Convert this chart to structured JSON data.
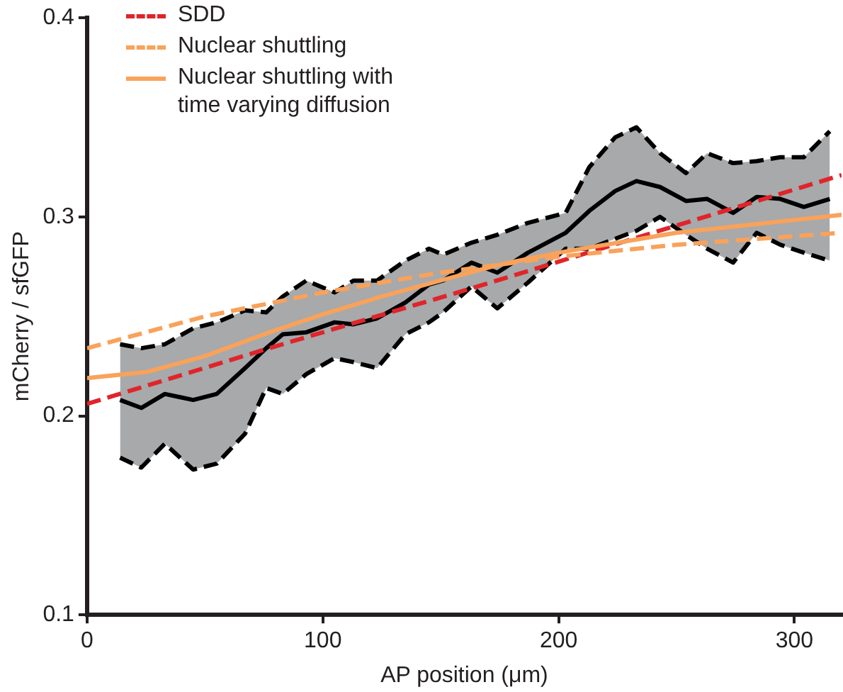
{
  "chart_data": {
    "type": "line",
    "xlabel": "AP position (μm)",
    "ylabel": "mCherry / sfGFP",
    "xlim": [
      0,
      320
    ],
    "ylim": [
      0.1,
      0.4
    ],
    "xticks": [
      0,
      100,
      200,
      300
    ],
    "yticks": [
      0.1,
      0.2,
      0.3,
      0.4
    ],
    "legend": "top left",
    "series": [
      {
        "color": "#000000",
        "line_style": "solid",
        "x": [
          14,
          23,
          33,
          45,
          55,
          67,
          76,
          83,
          93,
          105,
          113,
          123,
          135,
          145,
          151,
          163,
          174,
          187,
          203,
          213,
          224,
          233,
          243,
          254,
          263,
          274,
          284,
          294,
          304,
          315
        ],
        "values": [
          0.208,
          0.204,
          0.211,
          0.208,
          0.211,
          0.224,
          0.234,
          0.241,
          0.242,
          0.247,
          0.246,
          0.249,
          0.257,
          0.266,
          0.268,
          0.277,
          0.272,
          0.282,
          0.292,
          0.303,
          0.313,
          0.318,
          0.315,
          0.308,
          0.309,
          0.302,
          0.31,
          0.309,
          0.305,
          0.309
        ],
        "lower": [
          0.179,
          0.174,
          0.186,
          0.173,
          0.176,
          0.191,
          0.214,
          0.211,
          0.221,
          0.229,
          0.227,
          0.224,
          0.241,
          0.247,
          0.252,
          0.265,
          0.254,
          0.267,
          0.284,
          0.284,
          0.289,
          0.293,
          0.3,
          0.291,
          0.284,
          0.277,
          0.292,
          0.286,
          0.282,
          0.278
        ],
        "upper": [
          0.236,
          0.234,
          0.236,
          0.244,
          0.247,
          0.253,
          0.252,
          0.26,
          0.268,
          0.262,
          0.268,
          0.268,
          0.278,
          0.284,
          0.281,
          0.287,
          0.291,
          0.297,
          0.302,
          0.325,
          0.34,
          0.345,
          0.332,
          0.322,
          0.332,
          0.327,
          0.328,
          0.33,
          0.33,
          0.343
        ]
      },
      {
        "color": "#000000",
        "line_style": "dashed",
        "x": [
          14,
          23,
          33,
          45,
          55,
          67,
          76,
          83,
          93,
          105,
          113,
          123,
          135,
          145,
          151,
          163,
          174,
          187,
          203,
          213,
          224,
          233,
          243,
          254,
          263,
          274,
          284,
          294,
          304,
          315
        ],
        "values": [
          0.179,
          0.174,
          0.186,
          0.173,
          0.176,
          0.191,
          0.214,
          0.211,
          0.221,
          0.229,
          0.227,
          0.224,
          0.241,
          0.247,
          0.252,
          0.265,
          0.254,
          0.267,
          0.284,
          0.284,
          0.289,
          0.293,
          0.3,
          0.291,
          0.284,
          0.277,
          0.292,
          0.286,
          0.282,
          0.278
        ]
      },
      {
        "color": "#000000",
        "line_style": "dashed",
        "x": [
          14,
          23,
          33,
          45,
          55,
          67,
          76,
          83,
          93,
          105,
          113,
          123,
          135,
          145,
          151,
          163,
          174,
          187,
          203,
          213,
          224,
          233,
          243,
          254,
          263,
          274,
          284,
          294,
          304,
          315
        ],
        "values": [
          0.236,
          0.234,
          0.236,
          0.244,
          0.247,
          0.253,
          0.252,
          0.26,
          0.268,
          0.262,
          0.268,
          0.268,
          0.278,
          0.284,
          0.281,
          0.287,
          0.291,
          0.297,
          0.302,
          0.325,
          0.34,
          0.345,
          0.332,
          0.322,
          0.332,
          0.327,
          0.328,
          0.33,
          0.33,
          0.343
        ]
      },
      {
        "name": "SDD",
        "color": "#e0252a",
        "line_style": "dashed",
        "x": [
          0,
          80,
          160,
          240,
          320
        ],
        "values": [
          0.206,
          0.235,
          0.263,
          0.292,
          0.321
        ]
      },
      {
        "name": "Nuclear shuttling",
        "color": "#f9a25a",
        "line_style": "dashed",
        "x": [
          0,
          50,
          100,
          150,
          200,
          250,
          320
        ],
        "values": [
          0.234,
          0.25,
          0.262,
          0.272,
          0.28,
          0.286,
          0.292
        ]
      },
      {
        "name": "Nuclear shuttling with time varying diffusion",
        "color": "#f9a25a",
        "line_style": "solid",
        "x": [
          0,
          25,
          50,
          75,
          100,
          125,
          150,
          175,
          200,
          250,
          320
        ],
        "values": [
          0.219,
          0.222,
          0.23,
          0.241,
          0.251,
          0.26,
          0.268,
          0.276,
          0.282,
          0.292,
          0.301
        ]
      }
    ]
  }
}
